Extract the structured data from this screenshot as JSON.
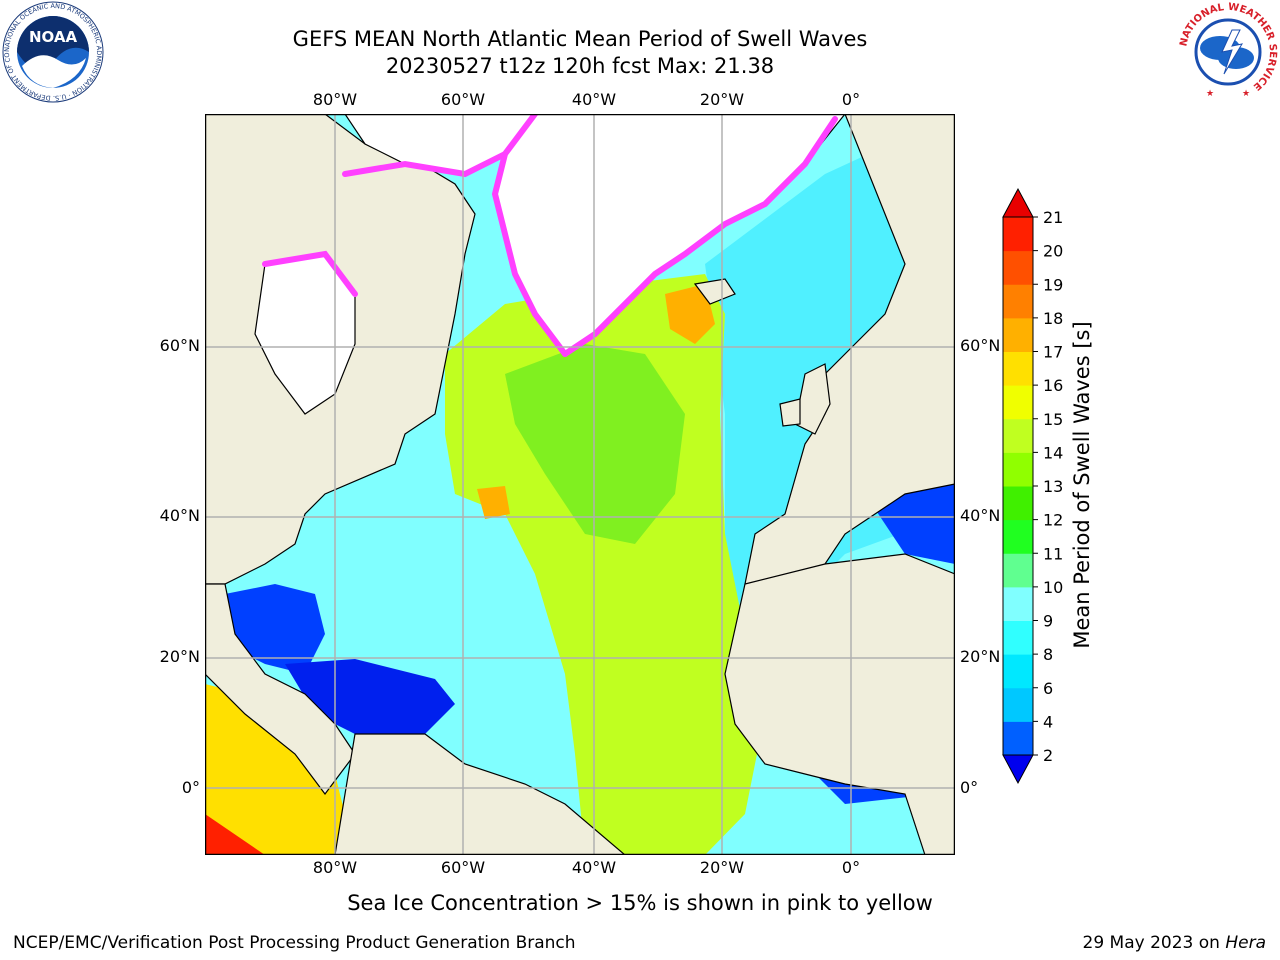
{
  "title_line1": "GEFS MEAN North Atlantic Mean Period of Swell Waves",
  "title_line2": "20230527 t12z 120h fcst   Max: 21.38",
  "lon_ticks": [
    "80°W",
    "60°W",
    "40°W",
    "20°W",
    "0°"
  ],
  "lat_ticks": [
    "60°N",
    "40°N",
    "20°N",
    "0°"
  ],
  "colorbar": {
    "label": "Mean Period of Swell Waves [s]",
    "ticks": [
      "2",
      "4",
      "6",
      "8",
      "9",
      "10",
      "11",
      "12",
      "13",
      "14",
      "15",
      "16",
      "17",
      "18",
      "19",
      "20",
      "21"
    ],
    "colors": [
      "#0000ee",
      "#0060ff",
      "#00c8ff",
      "#00e8ff",
      "#30ffff",
      "#80ffff",
      "#60ff90",
      "#20ff20",
      "#40f000",
      "#90ff00",
      "#c0ff20",
      "#f0ff00",
      "#ffe000",
      "#ffb000",
      "#ff8000",
      "#ff5000",
      "#ff2000",
      "#e80000"
    ]
  },
  "footer_note": "Sea Ice Concentration > 15% is shown in pink to yellow",
  "credit": "NCEP/EMC/Verification Post Processing Product Generation Branch",
  "date_prefix": "29 May 2023 on ",
  "date_host": "Hera",
  "logos": {
    "noaa_text": "NOAA",
    "noaa_ring": "NATIONAL OCEANIC AND ATMOSPHERIC ADMINISTRATION · U.S. DEPARTMENT OF COMMERCE",
    "nws_ring": "NATIONAL WEATHER SERVICE"
  },
  "colors": {
    "land": "#f0eedc",
    "ice": "#ffffff",
    "ice_edge": "#ff40ff",
    "grid": "#b0b0b0"
  }
}
